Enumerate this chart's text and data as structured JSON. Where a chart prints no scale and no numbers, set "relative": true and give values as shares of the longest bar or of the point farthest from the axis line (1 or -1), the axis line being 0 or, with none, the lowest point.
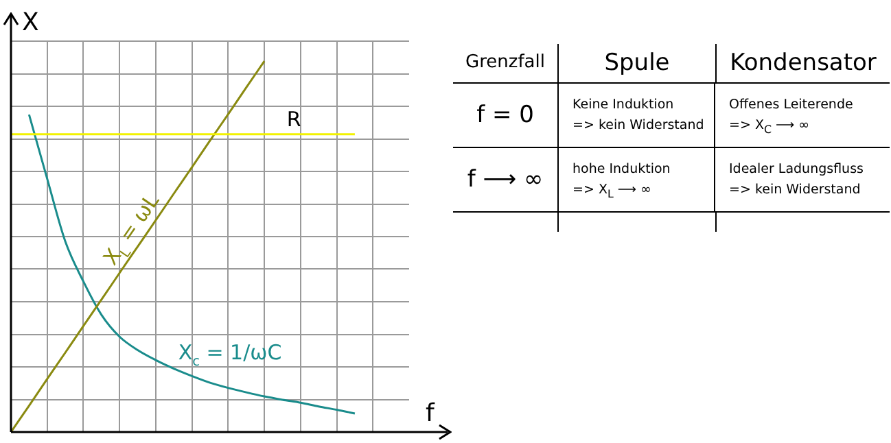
{
  "chart_data": [
    {
      "type": "line",
      "relative": true,
      "xlabel": "f",
      "ylabel": "X",
      "grid": true,
      "categories": [
        null,
        null,
        null,
        null,
        null,
        null,
        null,
        null,
        null,
        null,
        null,
        null,
        null,
        null,
        null,
        null,
        null,
        null,
        null,
        null,
        null,
        null,
        null
      ],
      "series": [
        {
          "name": "R",
          "color": "#f2f200",
          "values": [
            0.803,
            0.803,
            0.803,
            0.803,
            0.803,
            0.803,
            0.803,
            0.803,
            0.803,
            0.803,
            0.803,
            0.803,
            0.803,
            0.803,
            0.803,
            0.803,
            0.803,
            0.803,
            0.803,
            0.803,
            null,
            null,
            null
          ]
        },
        {
          "name": "X$_{L}$ = ωL",
          "color": "#8a8a10",
          "values": [
            0,
            0.071,
            0.143,
            0.214,
            0.286,
            0.357,
            0.429,
            0.5,
            0.571,
            0.643,
            0.714,
            0.786,
            0.857,
            0.929,
            1,
            null,
            null,
            null,
            null,
            null,
            null,
            null,
            null
          ]
        },
        {
          "name": "X$_{c}$ = 1/ωC",
          "color": "#1a8c8c",
          "values": [
            null,
            0.856,
            0.683,
            0.514,
            0.406,
            0.316,
            0.257,
            0.221,
            0.194,
            0.171,
            0.151,
            0.133,
            0.119,
            0.107,
            0.096,
            0.087,
            0.079,
            0.069,
            0.06,
            0.05,
            null,
            null,
            null
          ]
        }
      ]
    },
    {
      "type": "other",
      "categories": [
        "Grenzfall",
        "Spule",
        "Kondensator"
      ],
      "y_categories": [
        "f = 0",
        "f ⟶ ∞"
      ],
      "cell_labels": [
        [
          "Keine Induktion\n=> kein Widerstand",
          "Offenes Leiterende\n=> X$_{C}$ ⟶ ∞"
        ],
        [
          "hohe Induktion\n=> X$_{L}$ ⟶ ∞",
          "Idealer Ladungsfluss\n=> kein Widerstand"
        ]
      ]
    }
  ]
}
